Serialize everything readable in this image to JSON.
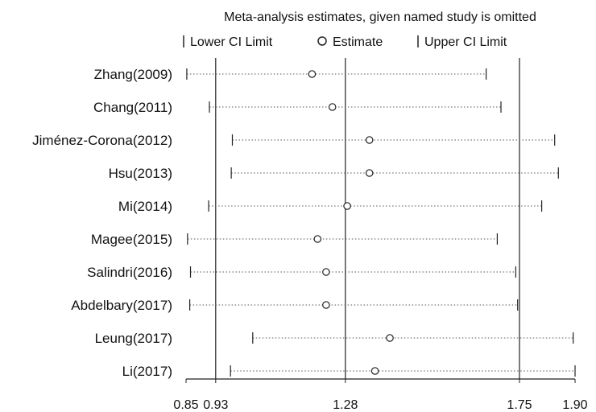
{
  "chart_data": {
    "type": "forest",
    "title": "Meta-analysis estimates, given named study is omitted",
    "legend": {
      "lower": "Lower CI Limit",
      "estimate": "Estimate",
      "upper": "Upper CI Limit"
    },
    "xlim": [
      0.85,
      1.9
    ],
    "xticks": [
      0.85,
      0.93,
      1.28,
      1.75,
      1.9
    ],
    "xtick_labels": [
      "0.85",
      "0.93",
      "1.28",
      "1.75",
      "1.90"
    ],
    "reference_lines": [
      0.93,
      1.28,
      1.75
    ],
    "studies": [
      {
        "name": "Zhang(2009)",
        "lower": 0.852,
        "estimate": 1.19,
        "upper": 1.66
      },
      {
        "name": "Chang(2011)",
        "lower": 0.913,
        "estimate": 1.245,
        "upper": 1.7
      },
      {
        "name": "Jiménez-Corona(2012)",
        "lower": 0.975,
        "estimate": 1.345,
        "upper": 1.845
      },
      {
        "name": "Hsu(2013)",
        "lower": 0.972,
        "estimate": 1.345,
        "upper": 1.855
      },
      {
        "name": "Mi(2014)",
        "lower": 0.911,
        "estimate": 1.285,
        "upper": 1.81
      },
      {
        "name": "Magee(2015)",
        "lower": 0.854,
        "estimate": 1.205,
        "upper": 1.69
      },
      {
        "name": "Salindri(2016)",
        "lower": 0.862,
        "estimate": 1.228,
        "upper": 1.74
      },
      {
        "name": "Abdelbary(2017)",
        "lower": 0.86,
        "estimate": 1.228,
        "upper": 1.745
      },
      {
        "name": "Leung(2017)",
        "lower": 1.03,
        "estimate": 1.4,
        "upper": 1.895
      },
      {
        "name": "Li(2017)",
        "lower": 0.97,
        "estimate": 1.36,
        "upper": 1.9
      }
    ]
  }
}
